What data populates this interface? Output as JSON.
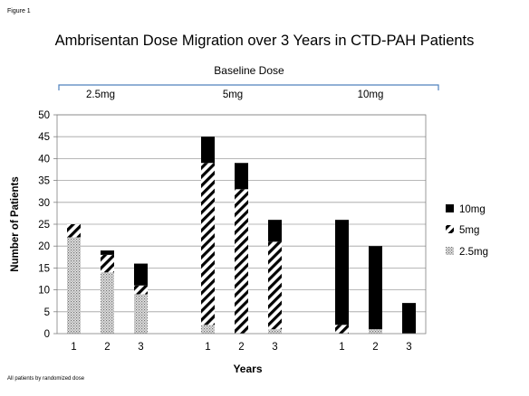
{
  "figure_label": "Figure 1",
  "footnote": "All patients by randomized dose",
  "colors": {
    "dose_10mg": "#000000",
    "dose_5mg": "diagonal-stripes",
    "dose_2_5mg": "stipple",
    "bracket": "#4f81bd",
    "grid": "#a0a0a0"
  },
  "chart_data": {
    "type": "bar",
    "stacked": true,
    "title": "Ambrisentan Dose Migration over 3 Years in CTD-PAH Patients",
    "xlabel": "Years",
    "ylabel": "Number of Patients",
    "ylim": [
      0,
      50
    ],
    "yticks": [
      0,
      5,
      10,
      15,
      20,
      25,
      30,
      35,
      40,
      45,
      50
    ],
    "grid": true,
    "legend_position": "right",
    "baseline_label": "Baseline Dose",
    "groups": [
      {
        "name": "2.5mg",
        "categories": [
          "1",
          "2",
          "3"
        ]
      },
      {
        "name": "5mg",
        "categories": [
          "1",
          "2",
          "3"
        ]
      },
      {
        "name": "10mg",
        "categories": [
          "1",
          "2",
          "3"
        ]
      }
    ],
    "series": [
      {
        "name": "2.5mg",
        "values": [
          22,
          14,
          9,
          2,
          0,
          1,
          0,
          1,
          0
        ]
      },
      {
        "name": "5mg",
        "values": [
          3,
          4,
          2,
          37,
          33,
          20,
          2,
          0,
          0
        ]
      },
      {
        "name": "10mg",
        "values": [
          0,
          1,
          5,
          6,
          6,
          5,
          24,
          19,
          7
        ]
      }
    ]
  }
}
